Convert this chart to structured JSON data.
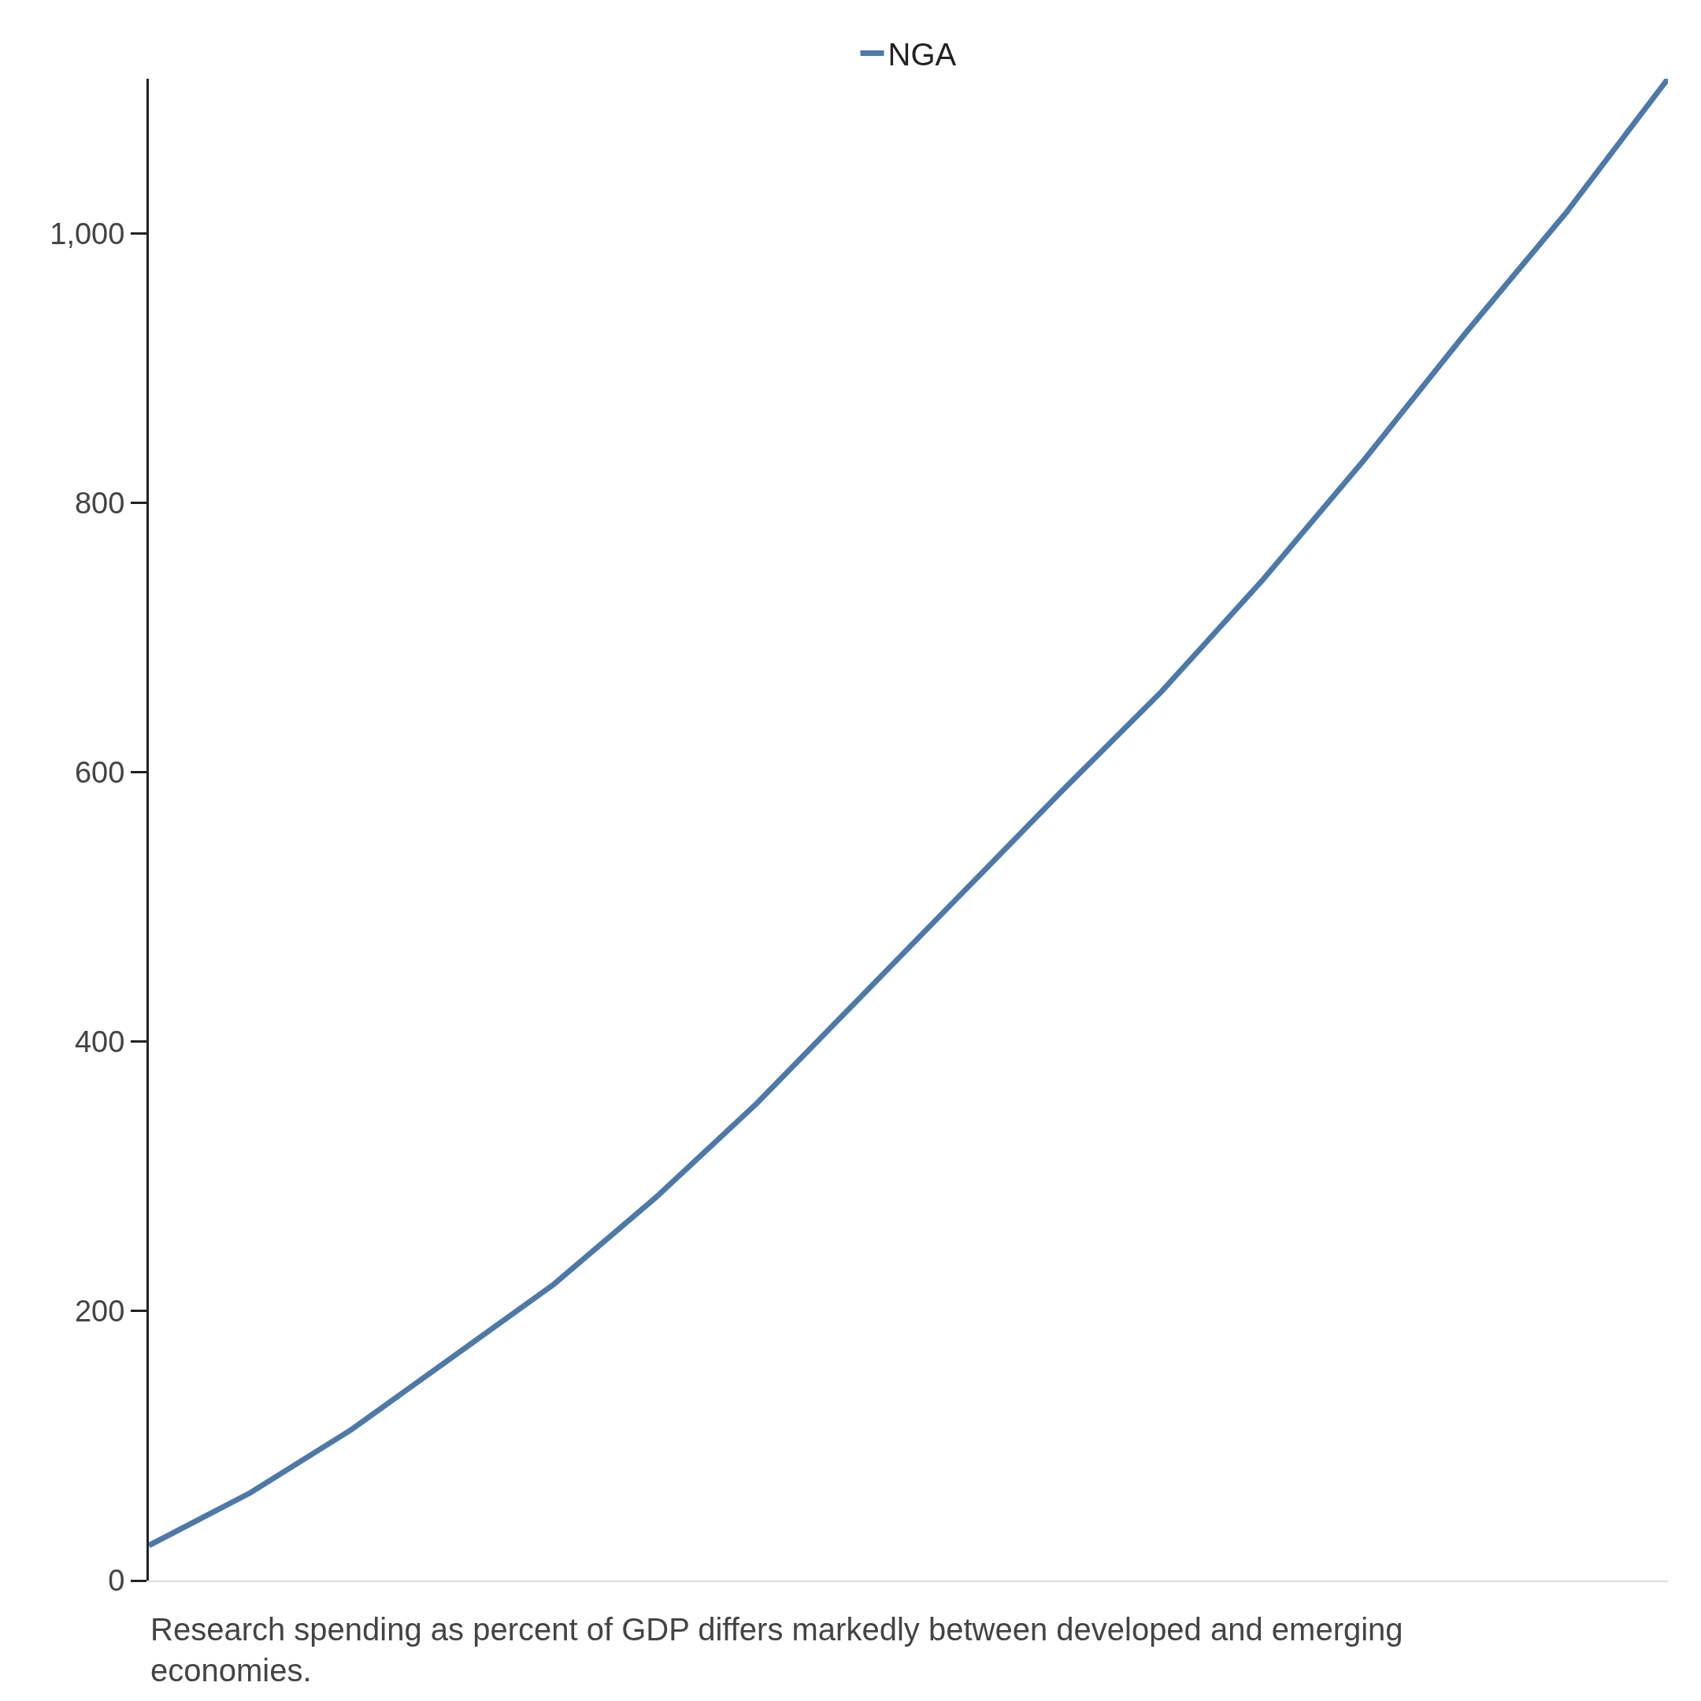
{
  "chart_data": {
    "type": "line",
    "categories": [
      null,
      null,
      null,
      null,
      null,
      null,
      null,
      null,
      null,
      null,
      null,
      null,
      null,
      null,
      null,
      null
    ],
    "series": [
      {
        "name": "NGA",
        "color": "#4e79a7",
        "values": [
          26,
          65,
          112,
          166,
          220,
          284,
          354,
          431,
          508,
          585,
          660,
          743,
          832,
          926,
          1016,
          1115
        ]
      }
    ],
    "ylim": [
      0,
      1115
    ],
    "yticks": [
      0,
      200,
      400,
      600,
      800,
      {
        "value": 1000,
        "label": "1,000"
      }
    ],
    "legend": "top",
    "marker": "none",
    "line_style": "solid",
    "annotations": [
      "Research spending as percent of GDP differs markedly between developed and emerging economies."
    ]
  }
}
